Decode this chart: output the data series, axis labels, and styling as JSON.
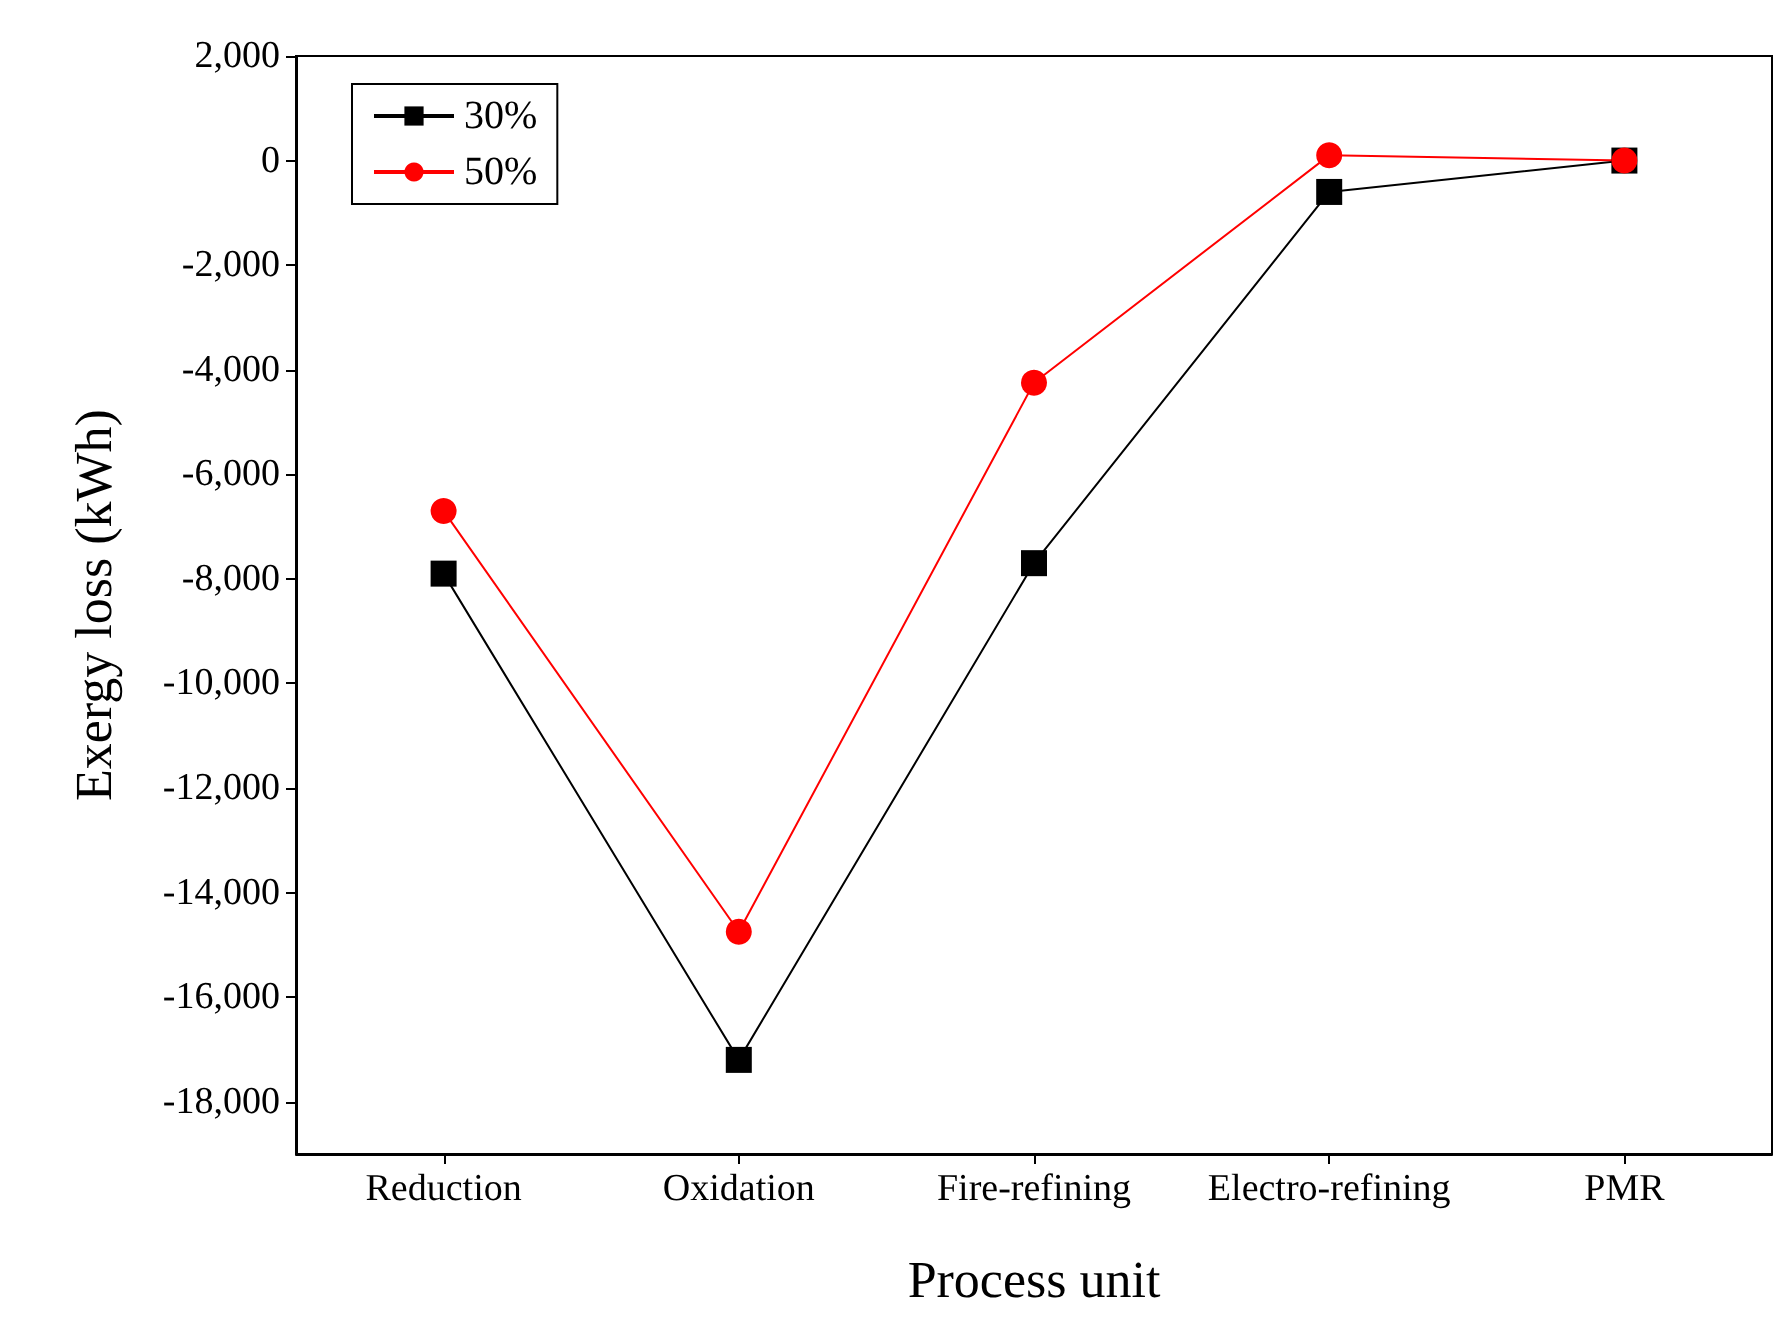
{
  "chart_data": {
    "type": "line",
    "xlabel": "Process unit",
    "ylabel": "Exergy loss (kWh)",
    "categories": [
      "Reduction",
      "Oxidation",
      "Fire-refining",
      "Electro-refining",
      "PMR"
    ],
    "series": [
      {
        "name": "30%",
        "color": "#000000",
        "marker": "square",
        "values": [
          -7900,
          -17200,
          -7700,
          -600,
          0
        ]
      },
      {
        "name": "50%",
        "color": "#ff0000",
        "marker": "circle",
        "values": [
          -6700,
          -14750,
          -4250,
          100,
          0
        ]
      }
    ],
    "ylim": [
      -19000,
      2000
    ],
    "yticks": [
      {
        "value": -18000,
        "label": "-18,000"
      },
      {
        "value": -16000,
        "label": "-16,000"
      },
      {
        "value": -14000,
        "label": "-14,000"
      },
      {
        "value": -12000,
        "label": "-12,000"
      },
      {
        "value": -10000,
        "label": "-10,000"
      },
      {
        "value": -8000,
        "label": "-8,000"
      },
      {
        "value": -6000,
        "label": "-6,000"
      },
      {
        "value": -4000,
        "label": "-4,000"
      },
      {
        "value": -2000,
        "label": "-2,000"
      },
      0,
      {
        "value": 2000,
        "label": "2,000"
      }
    ],
    "legend": "top left",
    "grid": false
  }
}
